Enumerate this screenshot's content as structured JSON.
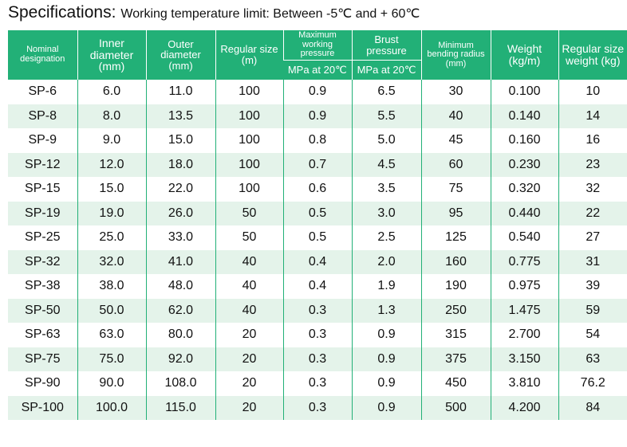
{
  "header": {
    "title": "Specifications:",
    "subtitle": "Working temperature limit: Between -5℃ and + 60℃"
  },
  "table": {
    "columns": [
      {
        "label": "Nominal designation"
      },
      {
        "label": "Inner diameter (mm)"
      },
      {
        "label": "Outer diameter (mm)"
      },
      {
        "label": "Regular size (m)"
      },
      {
        "label": "Maximum working pressure",
        "unit": "MPa at 20℃"
      },
      {
        "label": "Brust pressure",
        "unit": "MPa at 20℃"
      },
      {
        "label": "Minimum bending radius (mm)"
      },
      {
        "label": "Weight (kg/m)"
      },
      {
        "label": "Regular size weight (kg)"
      }
    ],
    "rows": [
      [
        "SP-6",
        "6.0",
        "11.0",
        "100",
        "0.9",
        "6.5",
        "30",
        "0.100",
        "10"
      ],
      [
        "SP-8",
        "8.0",
        "13.5",
        "100",
        "0.9",
        "5.5",
        "40",
        "0.140",
        "14"
      ],
      [
        "SP-9",
        "9.0",
        "15.0",
        "100",
        "0.8",
        "5.0",
        "45",
        "0.160",
        "16"
      ],
      [
        "SP-12",
        "12.0",
        "18.0",
        "100",
        "0.7",
        "4.5",
        "60",
        "0.230",
        "23"
      ],
      [
        "SP-15",
        "15.0",
        "22.0",
        "100",
        "0.6",
        "3.5",
        "75",
        "0.320",
        "32"
      ],
      [
        "SP-19",
        "19.0",
        "26.0",
        "50",
        "0.5",
        "3.0",
        "95",
        "0.440",
        "22"
      ],
      [
        "SP-25",
        "25.0",
        "33.0",
        "50",
        "0.5",
        "2.5",
        "125",
        "0.540",
        "27"
      ],
      [
        "SP-32",
        "32.0",
        "41.0",
        "40",
        "0.4",
        "2.0",
        "160",
        "0.775",
        "31"
      ],
      [
        "SP-38",
        "38.0",
        "48.0",
        "40",
        "0.4",
        "1.9",
        "190",
        "0.975",
        "39"
      ],
      [
        "SP-50",
        "50.0",
        "62.0",
        "40",
        "0.3",
        "1.3",
        "250",
        "1.475",
        "59"
      ],
      [
        "SP-63",
        "63.0",
        "80.0",
        "20",
        "0.3",
        "0.9",
        "315",
        "2.700",
        "54"
      ],
      [
        "SP-75",
        "75.0",
        "92.0",
        "20",
        "0.3",
        "0.9",
        "375",
        "3.150",
        "63"
      ],
      [
        "SP-90",
        "90.0",
        "108.0",
        "20",
        "0.3",
        "0.9",
        "450",
        "3.810",
        "76.2"
      ],
      [
        "SP-100",
        "100.0",
        "115.0",
        "20",
        "0.3",
        "0.9",
        "500",
        "4.200",
        "84"
      ]
    ]
  }
}
